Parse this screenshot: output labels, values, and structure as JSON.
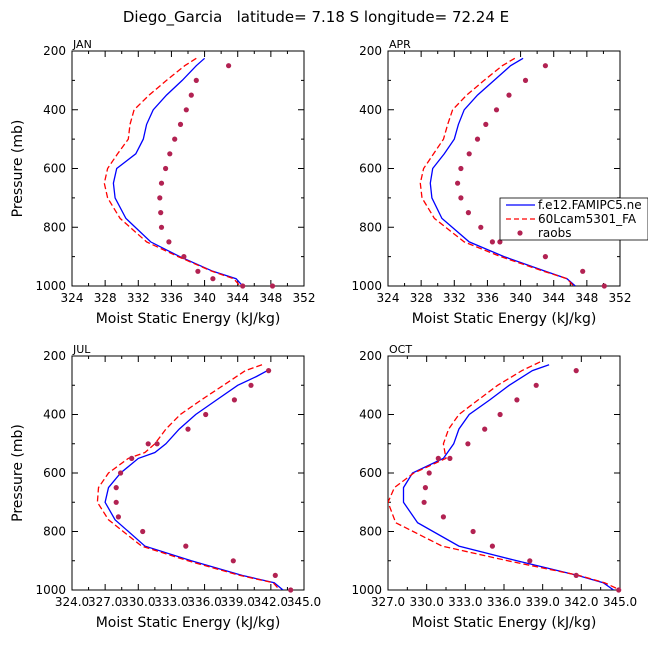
{
  "title": "Diego_Garcia   latitude= 7.18 S longitude= 72.24 E",
  "legend": {
    "entries": [
      {
        "label": "f.e12.FAMIPC5.ne",
        "color": "#0000ff",
        "style": "solid"
      },
      {
        "label": "60Lcam5301_FA",
        "color": "#ff0000",
        "style": "dashed"
      },
      {
        "label": "raobs",
        "color": "#b22252",
        "style": "dot"
      }
    ]
  },
  "chart_data": [
    {
      "type": "line",
      "panel": "JAN",
      "xlabel": "Moist Static Energy (kJ/kg)",
      "ylabel": "Pressure (mb)",
      "xlim": [
        324,
        352
      ],
      "ylim": [
        1000,
        200
      ],
      "xticks": [
        "324",
        "328",
        "332",
        "336",
        "340",
        "344",
        "348",
        "352"
      ],
      "yticks": [
        "200",
        "400",
        "600",
        "800",
        "1000"
      ],
      "series": [
        {
          "name": "f.e12.FAMIPC5.ne",
          "x": [
            340,
            339,
            337.3,
            335.4,
            333.8,
            333,
            332.6,
            331.7,
            329.4,
            329,
            329.2,
            330.5,
            333.5,
            337,
            341,
            343.8,
            344.6
          ],
          "y": [
            225,
            250,
            300,
            350,
            400,
            450,
            500,
            550,
            600,
            650,
            700,
            770,
            850,
            900,
            950,
            975,
            1000
          ]
        },
        {
          "name": "60Lcam5301_FA",
          "x": [
            339,
            337.6,
            335.4,
            333.3,
            331.5,
            331,
            330.8,
            329.5,
            328.3,
            327.9,
            328.3,
            329.8,
            333,
            336.8,
            340.9,
            343.5,
            344.3
          ],
          "y": [
            225,
            250,
            300,
            350,
            400,
            450,
            500,
            550,
            600,
            650,
            700,
            770,
            850,
            900,
            950,
            975,
            1000
          ]
        },
        {
          "name": "raobs",
          "x": [
            342.9,
            339,
            338.4,
            337.8,
            337.1,
            336.4,
            335.8,
            335.3,
            334.8,
            334.6,
            334.7,
            334.8,
            335.7,
            337.5,
            339.2,
            341,
            344.6,
            348.2
          ],
          "y": [
            250,
            300,
            350,
            400,
            450,
            500,
            550,
            600,
            650,
            700,
            750,
            800,
            850,
            900,
            950,
            975,
            1000,
            1000
          ]
        }
      ]
    },
    {
      "type": "line",
      "panel": "APR",
      "xlabel": "Moist Static Energy (kJ/kg)",
      "ylabel": "",
      "xlim": [
        324,
        352
      ],
      "ylim": [
        1000,
        200
      ],
      "xticks": [
        "324",
        "328",
        "332",
        "336",
        "340",
        "344",
        "348",
        "352"
      ],
      "yticks": [
        "200",
        "400",
        "600",
        "800",
        "1000"
      ],
      "series": [
        {
          "name": "f.e12.FAMIPC5.ne",
          "x": [
            340.3,
            338.8,
            336.8,
            334.8,
            333.2,
            332.5,
            332,
            330.8,
            329.4,
            329.1,
            329.3,
            330.5,
            333.8,
            338,
            343,
            345.6,
            346.6
          ],
          "y": [
            225,
            250,
            300,
            350,
            400,
            450,
            500,
            550,
            600,
            650,
            700,
            770,
            850,
            900,
            950,
            975,
            1000
          ]
        },
        {
          "name": "60Lcam5301_FA",
          "x": [
            339.3,
            337.8,
            335.6,
            333.5,
            331.8,
            331.2,
            330.7,
            329.5,
            328.3,
            327.9,
            328.1,
            329.6,
            333.2,
            337.6,
            342.8,
            345.6,
            346.4
          ],
          "y": [
            225,
            250,
            300,
            350,
            400,
            450,
            500,
            550,
            600,
            650,
            700,
            770,
            850,
            900,
            950,
            975,
            1000
          ]
        },
        {
          "name": "raobs",
          "x": [
            343,
            340.6,
            338.6,
            337.1,
            335.8,
            334.8,
            333.8,
            332.8,
            332.4,
            332.8,
            333.7,
            335.2,
            336.6,
            337.5,
            343,
            347.5,
            350.1
          ],
          "y": [
            250,
            300,
            350,
            400,
            450,
            500,
            550,
            600,
            650,
            700,
            750,
            800,
            850,
            850,
            900,
            950,
            1000
          ]
        }
      ]
    },
    {
      "type": "line",
      "panel": "JUL",
      "xlabel": "Moist Static Energy (kJ/kg)",
      "ylabel": "Pressure (mb)",
      "xlim": [
        324.0,
        345.0
      ],
      "ylim": [
        1000,
        200
      ],
      "xticks": [
        "324.0",
        "327.0",
        "330.0",
        "333.0",
        "336.0",
        "339.0",
        "342.0",
        "345.0"
      ],
      "yticks": [
        "200",
        "400",
        "600",
        "800",
        "1000"
      ],
      "series": [
        {
          "name": "f.e12.FAMIPC5.ne",
          "x": [
            341.7,
            340.7,
            339,
            337.1,
            335.2,
            333.7,
            332.5,
            331.5,
            330,
            328.4,
            327.3,
            327,
            327.9,
            330.6,
            334.8,
            339.4,
            342.3,
            343.1
          ],
          "y": [
            250,
            270,
            300,
            350,
            400,
            450,
            500,
            530,
            550,
            600,
            650,
            700,
            760,
            850,
            900,
            950,
            975,
            1000
          ]
        },
        {
          "name": "60Lcam5301_FA",
          "x": [
            341.2,
            339.7,
            337.7,
            335.7,
            333.8,
            332.5,
            331.5,
            330.6,
            329.1,
            327.3,
            326.4,
            326.3,
            327.3,
            330.3,
            334.5,
            339.2,
            342.2,
            342.8
          ],
          "y": [
            230,
            250,
            300,
            350,
            400,
            450,
            500,
            530,
            550,
            600,
            650,
            700,
            760,
            850,
            900,
            950,
            975,
            1000
          ]
        },
        {
          "name": "raobs",
          "x": [
            341.8,
            340.2,
            338.7,
            336.1,
            334.5,
            331.7,
            330.9,
            329.4,
            328.4,
            328,
            328,
            328.2,
            330.4,
            334.3,
            338.6,
            342.4,
            343.8
          ],
          "y": [
            250,
            300,
            350,
            400,
            450,
            500,
            500,
            550,
            600,
            650,
            700,
            750,
            800,
            850,
            900,
            950,
            1000
          ]
        }
      ]
    },
    {
      "type": "line",
      "panel": "OCT",
      "xlabel": "Moist Static Energy (kJ/kg)",
      "ylabel": "",
      "xlim": [
        327.0,
        345.0
      ],
      "ylim": [
        1000,
        200
      ],
      "xticks": [
        "327.0",
        "330.0",
        "333.0",
        "336.0",
        "339.0",
        "342.0",
        "345.0"
      ],
      "yticks": [
        "200",
        "400",
        "600",
        "800",
        "1000"
      ],
      "series": [
        {
          "name": "f.e12.FAMIPC5.ne",
          "x": [
            339.5,
            338.2,
            336.4,
            334.9,
            333.3,
            332.5,
            332.1,
            331.3,
            328.9,
            328.2,
            328.2,
            329.3,
            332.5,
            337,
            341.7,
            343.7,
            344.5
          ],
          "y": [
            230,
            250,
            300,
            350,
            400,
            450,
            500,
            550,
            600,
            650,
            700,
            770,
            850,
            900,
            950,
            975,
            1000
          ]
        },
        {
          "name": "60Lcam5301_FA",
          "x": [
            338.8,
            337.4,
            335.5,
            334,
            332.5,
            331.7,
            331.3,
            331.5,
            329,
            327.5,
            327,
            327.6,
            331.2,
            336.3,
            341.8,
            343.8,
            345
          ],
          "y": [
            220,
            250,
            300,
            350,
            400,
            450,
            500,
            550,
            600,
            650,
            700,
            770,
            850,
            900,
            950,
            975,
            1000
          ]
        },
        {
          "name": "raobs",
          "x": [
            341.6,
            338.5,
            337,
            335.7,
            334.5,
            333.2,
            331.8,
            330.9,
            330.2,
            329.9,
            329.8,
            331.3,
            333.6,
            335.1,
            338,
            341.6,
            344.9
          ],
          "y": [
            250,
            300,
            350,
            400,
            450,
            500,
            550,
            550,
            600,
            650,
            700,
            750,
            800,
            850,
            900,
            950,
            1000
          ]
        }
      ]
    }
  ]
}
